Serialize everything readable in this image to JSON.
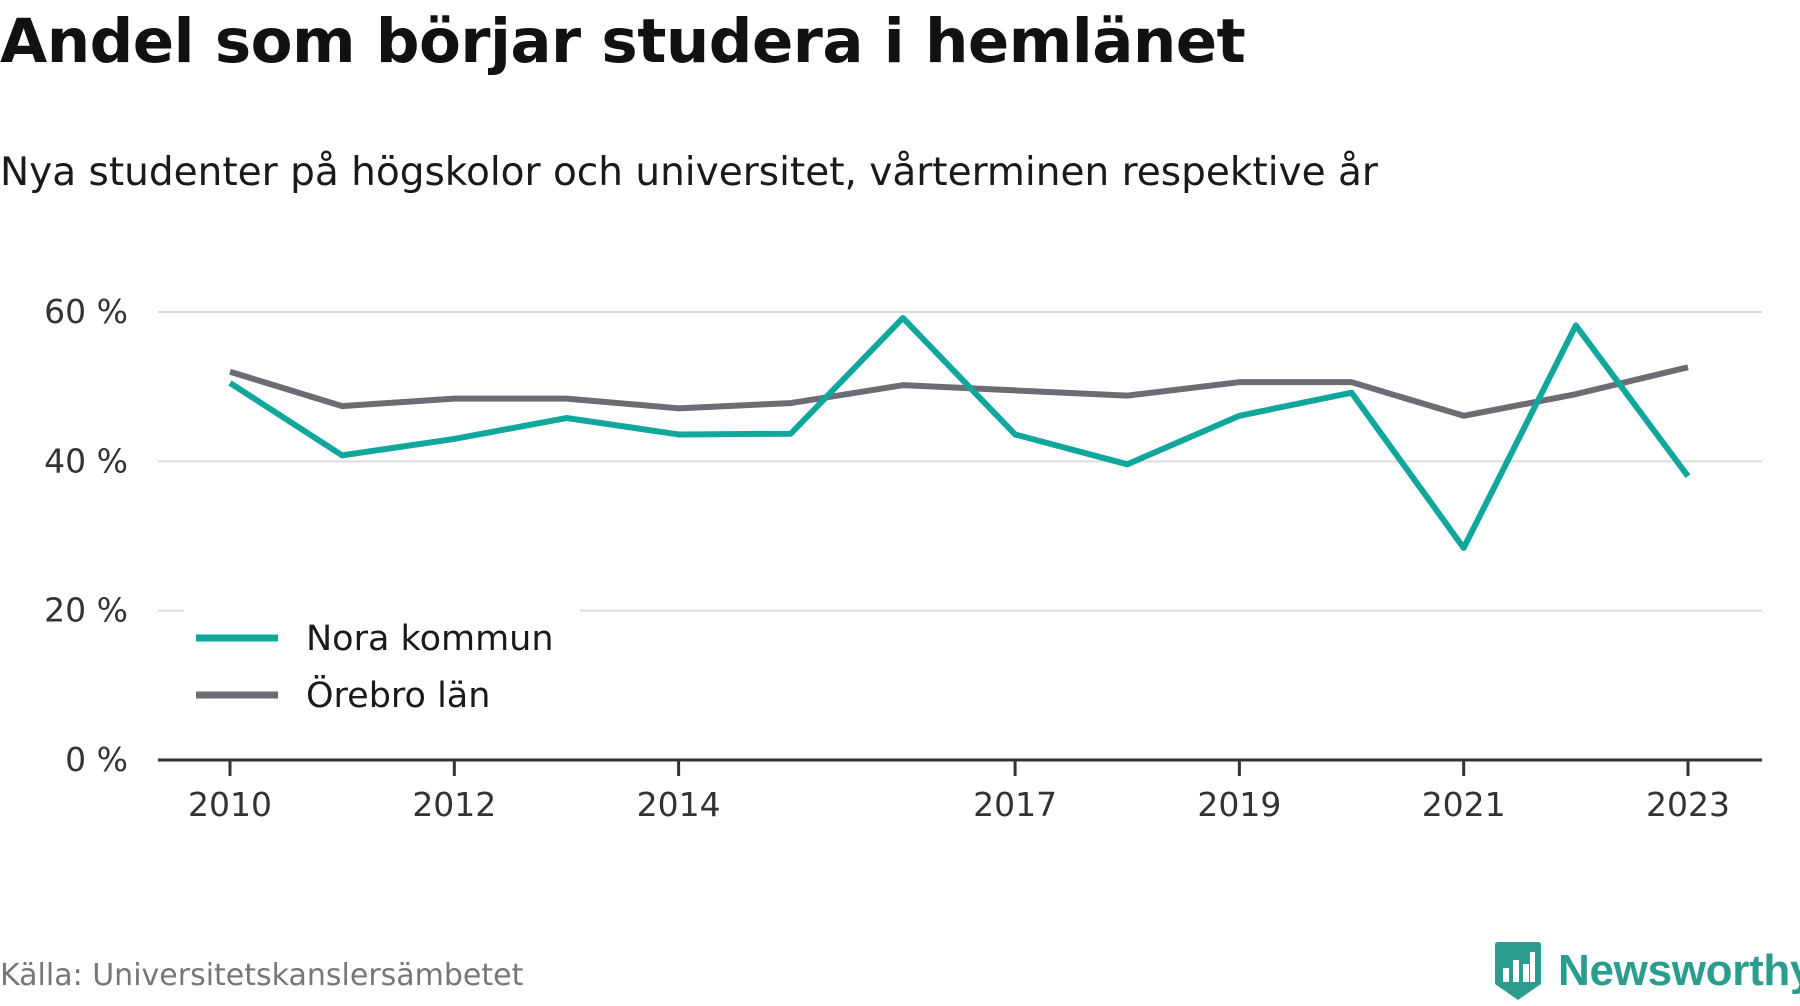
{
  "chart_data": {
    "type": "line",
    "title": "Andel som börjar studera i hemlänet",
    "subtitle": "Nya studenter på högskolor och universitet, vårterminen respektive år",
    "x": [
      2010,
      2011,
      2012,
      2013,
      2014,
      2015,
      2016,
      2017,
      2018,
      2019,
      2020,
      2021,
      2022,
      2023
    ],
    "x_tick_labels": [
      "2010",
      "2012",
      "2014",
      "2017",
      "2019",
      "2021",
      "2023"
    ],
    "y_tick_labels": [
      "0 %",
      "20 %",
      "40 %",
      "60 %"
    ],
    "ylim": [
      0,
      60
    ],
    "y_ticks": [
      0,
      20,
      40,
      60
    ],
    "grid": true,
    "legend_position": "bottom-left",
    "series": [
      {
        "name": "Nora kommun",
        "color": "#11a79c",
        "values": [
          50.5,
          40.8,
          43.0,
          45.8,
          43.6,
          43.7,
          59.2,
          43.6,
          39.6,
          46.1,
          49.2,
          28.4,
          58.2,
          38.0
        ]
      },
      {
        "name": "Örebro län",
        "color": "#6d6b73",
        "values": [
          52.0,
          47.4,
          48.4,
          48.4,
          47.1,
          47.8,
          50.2,
          49.5,
          48.8,
          50.6,
          50.6,
          46.1,
          49.0,
          52.6
        ]
      }
    ],
    "source": "Källa: Universitetskanslersämbetet"
  },
  "brand": {
    "name": "Newsworthy",
    "color": "#2a9d8f",
    "icon": "newsworthy-logo-icon"
  }
}
